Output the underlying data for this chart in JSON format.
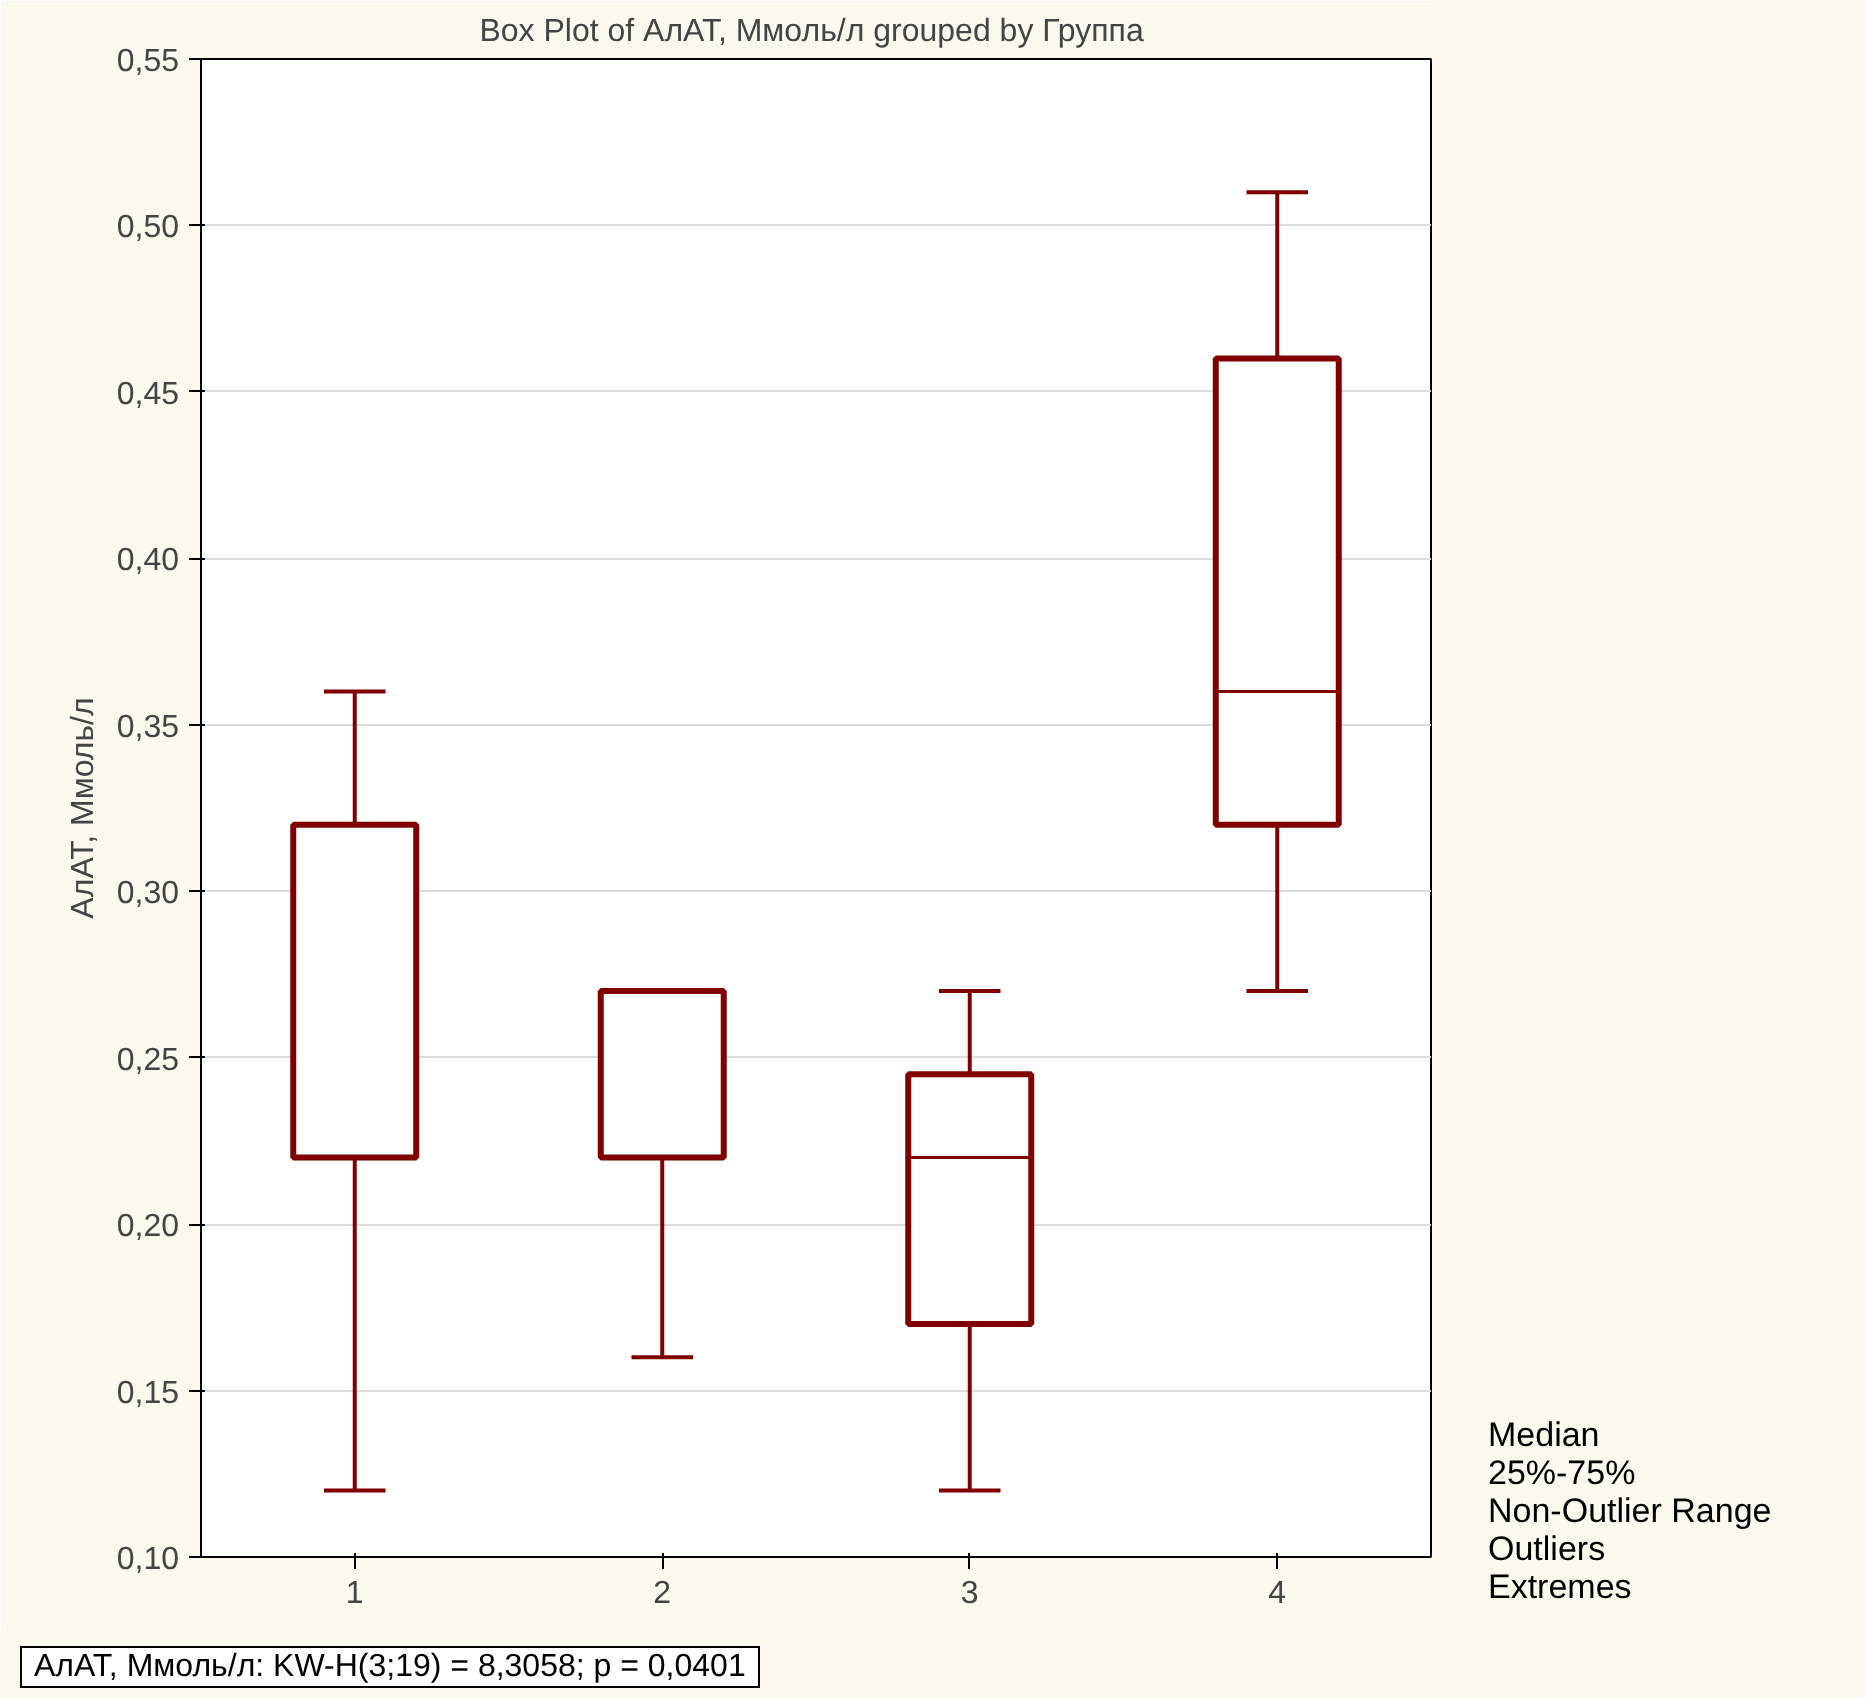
{
  "chart_data": {
    "type": "box",
    "title": "Box Plot of АлАТ, Ммоль/л grouped by  Группа",
    "ylabel": "АлАТ, Ммоль/л",
    "categories": [
      "1",
      "2",
      "3",
      "4"
    ],
    "series": [
      {
        "color": "#800000",
        "boxes": [
          {
            "low": 0.12,
            "q1": 0.22,
            "median": 0.32,
            "q3": 0.32,
            "high": 0.36
          },
          {
            "low": 0.16,
            "q1": 0.22,
            "median": 0.27,
            "q3": 0.27,
            "high": 0.27
          },
          {
            "low": 0.12,
            "q1": 0.17,
            "median": 0.22,
            "q3": 0.245,
            "high": 0.27
          },
          {
            "low": 0.27,
            "q1": 0.32,
            "median": 0.36,
            "q3": 0.46,
            "high": 0.51
          }
        ]
      }
    ],
    "ylim": [
      0.1,
      0.55
    ],
    "yticks": [
      {
        "value": 0.1,
        "label": "0,10"
      },
      {
        "value": 0.15,
        "label": "0,15"
      },
      {
        "value": 0.2,
        "label": "0,20"
      },
      {
        "value": 0.25,
        "label": "0,25"
      },
      {
        "value": 0.3,
        "label": "0,30"
      },
      {
        "value": 0.35,
        "label": "0,35"
      },
      {
        "value": 0.4,
        "label": "0,40"
      },
      {
        "value": 0.45,
        "label": "0,45"
      },
      {
        "value": 0.5,
        "label": "0,50"
      },
      {
        "value": 0.55,
        "label": "0,55"
      }
    ],
    "grid": "y",
    "annotations": [
      "Median",
      "25%-75%",
      "Non-Outlier Range",
      "Outliers",
      "Extremes",
      "АлАТ, Ммоль/л:  KW-H(3;19) = 8,3058; p = 0,0401"
    ]
  }
}
